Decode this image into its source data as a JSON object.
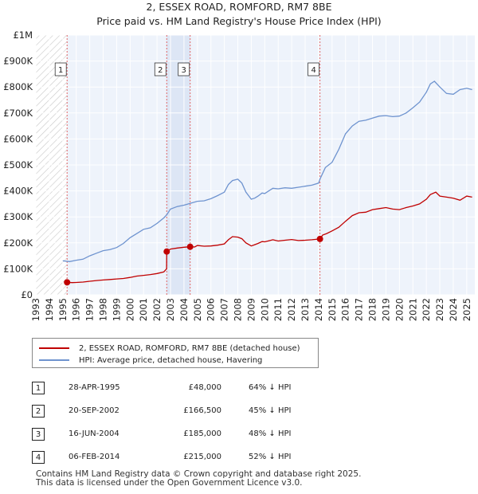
{
  "chart_data": {
    "type": "line",
    "title": "2, ESSEX ROAD, ROMFORD, RM7 8BE",
    "subtitle": "Price paid vs. HM Land Registry's House Price Index (HPI)",
    "xlim": [
      1993,
      2025.6
    ],
    "ylim": [
      0,
      1000000
    ],
    "x_ticks": [
      1993,
      1994,
      1995,
      1996,
      1997,
      1998,
      1999,
      2000,
      2001,
      2002,
      2003,
      2004,
      2005,
      2006,
      2007,
      2008,
      2009,
      2010,
      2011,
      2012,
      2013,
      2014,
      2015,
      2016,
      2017,
      2018,
      2019,
      2020,
      2021,
      2022,
      2023,
      2024,
      2025
    ],
    "y_ticks": [
      0,
      100000,
      200000,
      300000,
      400000,
      500000,
      600000,
      700000,
      800000,
      900000,
      1000000
    ],
    "y_tick_labels": [
      "£0",
      "£100K",
      "£200K",
      "£300K",
      "£400K",
      "£500K",
      "£600K",
      "£700K",
      "£800K",
      "£900K",
      "£1M"
    ],
    "hatch_until": 1995.32,
    "sale_band": [
      2002.72,
      2004.46
    ],
    "series": [
      {
        "name": "2, ESSEX ROAD, ROMFORD, RM7 8BE (detached house)",
        "color": "#c00000",
        "x": [
          1995.32,
          1995.7,
          1996,
          1996.5,
          1997,
          1997.5,
          1998,
          1998.5,
          1999,
          1999.5,
          2000,
          2000.5,
          2001,
          2001.5,
          2002,
          2002.5,
          2002.71,
          2002.72,
          2003,
          2003.5,
          2004,
          2004.46,
          2004.8,
          2005,
          2005.5,
          2006,
          2006.5,
          2007,
          2007.3,
          2007.6,
          2008,
          2008.3,
          2008.6,
          2009,
          2009.25,
          2009.5,
          2009.8,
          2010,
          2010.3,
          2010.6,
          2011,
          2011.5,
          2012,
          2012.5,
          2013,
          2013.5,
          2014.1,
          2014.3,
          2014.6,
          2015,
          2015.5,
          2016,
          2016.5,
          2017,
          2017.5,
          2018,
          2018.5,
          2019,
          2019.5,
          2020,
          2020.5,
          2021,
          2021.5,
          2022,
          2022.3,
          2022.7,
          2023,
          2023.5,
          2024,
          2024.5,
          2025,
          2025.4
        ],
        "values": [
          48000,
          47000,
          47500,
          49000,
          52000,
          55000,
          57000,
          59000,
          61000,
          63000,
          67000,
          72000,
          75000,
          78000,
          82000,
          88000,
          100000,
          166500,
          176000,
          180000,
          183000,
          185000,
          184000,
          190000,
          187000,
          188000,
          191000,
          196000,
          212000,
          224000,
          222000,
          216000,
          200000,
          188000,
          193000,
          198000,
          205000,
          204000,
          208000,
          212000,
          207000,
          210000,
          213000,
          209000,
          210000,
          212000,
          215000,
          230000,
          236000,
          246000,
          260000,
          283000,
          305000,
          316000,
          318000,
          328000,
          332000,
          336000,
          330000,
          328000,
          336000,
          342000,
          350000,
          368000,
          386000,
          395000,
          380000,
          376000,
          372000,
          364000,
          380000,
          376000
        ]
      },
      {
        "name": "HPI: Average price, detached house, Havering",
        "color": "#6e93cf",
        "x": [
          1995,
          1995.5,
          1996,
          1996.5,
          1997,
          1997.5,
          1998,
          1998.5,
          1999,
          1999.5,
          2000,
          2000.5,
          2001,
          2001.5,
          2002,
          2002.5,
          2002.72,
          2003,
          2003.5,
          2004,
          2004.46,
          2005,
          2005.5,
          2006,
          2006.5,
          2007,
          2007.3,
          2007.6,
          2008,
          2008.3,
          2008.6,
          2009,
          2009.25,
          2009.5,
          2009.8,
          2010,
          2010.3,
          2010.6,
          2011,
          2011.5,
          2012,
          2012.5,
          2013,
          2013.5,
          2014,
          2014.1,
          2014.5,
          2015,
          2015.5,
          2016,
          2016.5,
          2017,
          2017.5,
          2018,
          2018.5,
          2019,
          2019.5,
          2020,
          2020.5,
          2021,
          2021.5,
          2022,
          2022.3,
          2022.6,
          2023,
          2023.5,
          2024,
          2024.5,
          2025,
          2025.4
        ],
        "values": [
          131000,
          128000,
          133000,
          137000,
          150000,
          160000,
          170000,
          174000,
          182000,
          198000,
          220000,
          236000,
          252000,
          258000,
          275000,
          296000,
          308000,
          330000,
          340000,
          345000,
          352000,
          360000,
          362000,
          370000,
          382000,
          395000,
          425000,
          440000,
          445000,
          430000,
          395000,
          368000,
          372000,
          380000,
          392000,
          390000,
          400000,
          410000,
          408000,
          412000,
          410000,
          414000,
          418000,
          422000,
          430000,
          445000,
          490000,
          510000,
          560000,
          620000,
          650000,
          668000,
          672000,
          680000,
          688000,
          690000,
          686000,
          688000,
          700000,
          720000,
          742000,
          780000,
          812000,
          822000,
          800000,
          775000,
          772000,
          790000,
          795000,
          790000
        ]
      }
    ],
    "sales": [
      {
        "label": "1",
        "x": 1995.32,
        "price": 48000
      },
      {
        "label": "2",
        "x": 2002.72,
        "price": 166500
      },
      {
        "label": "3",
        "x": 2004.46,
        "price": 185000
      },
      {
        "label": "4",
        "x": 2014.1,
        "price": 215000
      }
    ]
  },
  "legend": {
    "property_label": "2, ESSEX ROAD, ROMFORD, RM7 8BE (detached house)",
    "hpi_label": "HPI: Average price, detached house, Havering"
  },
  "sales_table": [
    {
      "num": "1",
      "date": "28-APR-1995",
      "price": "£48,000",
      "hpi": "64% ↓ HPI"
    },
    {
      "num": "2",
      "date": "20-SEP-2002",
      "price": "£166,500",
      "hpi": "45% ↓ HPI"
    },
    {
      "num": "3",
      "date": "16-JUN-2004",
      "price": "£185,000",
      "hpi": "48% ↓ HPI"
    },
    {
      "num": "4",
      "date": "06-FEB-2014",
      "price": "£215,000",
      "hpi": "52% ↓ HPI"
    }
  ],
  "footer": {
    "line1": "Contains HM Land Registry data © Crown copyright and database right 2025.",
    "line2": "This data is licensed under the Open Government Licence v3.0."
  },
  "colors": {
    "property": "#c00000",
    "hpi": "#6e93cf",
    "plot_bg": "#eef3fb",
    "grid": "#ffffff"
  }
}
